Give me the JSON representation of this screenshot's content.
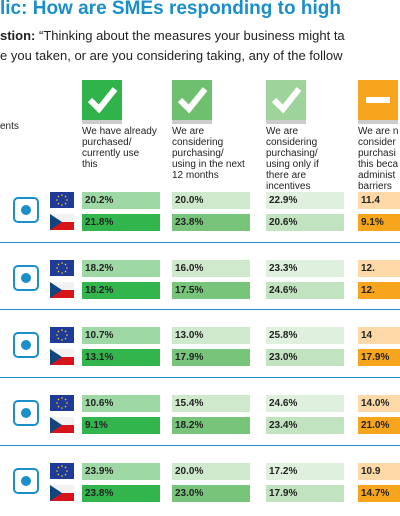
{
  "header": {
    "title": "lic: How are SMEs responding to high",
    "question_label": "stion:",
    "question_text": " “Thinking about the measures your business might ta",
    "question_line2": "e you taken, or are you considering taking, any of the follow"
  },
  "row_header": "ents",
  "columns": [
    {
      "lines": [
        "We have already",
        "purchased/",
        "currently use",
        "this"
      ],
      "color": "#2fb34a"
    },
    {
      "lines": [
        "We are",
        "considering",
        "purchasing/",
        "using in the next",
        "12 months"
      ],
      "color": "#6ec06e"
    },
    {
      "lines": [
        "We are",
        "considering",
        "purchasing/",
        "using only if",
        "there are",
        "incentives"
      ],
      "color": "#9fd39c"
    },
    {
      "lines": [
        "We are n",
        "consider",
        "purchasi",
        "this beca",
        "administ",
        "barriers"
      ],
      "color": "#f7a51c"
    }
  ],
  "cell_colors": {
    "eu": [
      "#9ed8a4",
      "#cfe9cd",
      "#dff1de",
      "#fcd9a6"
    ],
    "cz": [
      "#33b54d",
      "#78c47a",
      "#c2e3c0",
      "#f7a51c"
    ]
  },
  "rows": [
    {
      "eu": [
        "20.2%",
        "20.0%",
        "22.9%",
        "11.4"
      ],
      "cz": [
        "21.8%",
        "23.8%",
        "20.6%",
        "9.1%"
      ]
    },
    {
      "eu": [
        "18.2%",
        "16.0%",
        "23.3%",
        "12."
      ],
      "cz": [
        "18.2%",
        "17.5%",
        "24.6%",
        "12."
      ]
    },
    {
      "eu": [
        "10.7%",
        "13.0%",
        "25.8%",
        "14"
      ],
      "cz": [
        "13.1%",
        "17.9%",
        "23.0%",
        "17.9%"
      ]
    },
    {
      "eu": [
        "10.6%",
        "15.4%",
        "24.6%",
        "14.0%"
      ],
      "cz": [
        "9.1%",
        "18.2%",
        "23.4%",
        "21.0%"
      ]
    },
    {
      "eu": [
        "23.9%",
        "20.0%",
        "17.2%",
        "10.9"
      ],
      "cz": [
        "23.8%",
        "23.0%",
        "17.9%",
        "14.7%"
      ]
    }
  ]
}
